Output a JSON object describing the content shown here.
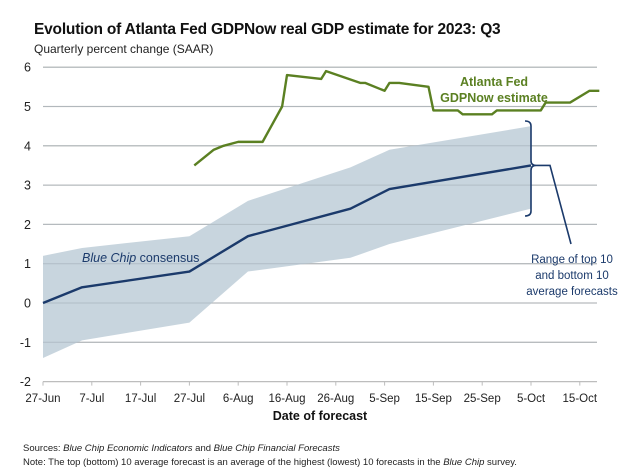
{
  "chart_data": {
    "type": "line",
    "title": "Evolution of Atlanta Fed GDPNow real GDP estimate for 2023: Q3",
    "subtitle": "Quarterly percent change (SAAR)",
    "xlabel": "Date of forecast",
    "ylabel": "",
    "ylim": [
      -2,
      6
    ],
    "yticks": [
      -2,
      -1,
      0,
      1,
      2,
      3,
      4,
      5,
      6
    ],
    "xlim_days_from_jun27": [
      0,
      113
    ],
    "xticks": [
      {
        "label": "27-Jun",
        "day": 0
      },
      {
        "label": "7-Jul",
        "day": 10
      },
      {
        "label": "17-Jul",
        "day": 20
      },
      {
        "label": "27-Jul",
        "day": 30
      },
      {
        "label": "6-Aug",
        "day": 40
      },
      {
        "label": "16-Aug",
        "day": 50
      },
      {
        "label": "26-Aug",
        "day": 60
      },
      {
        "label": "5-Sep",
        "day": 70
      },
      {
        "label": "15-Sep",
        "day": 80
      },
      {
        "label": "25-Sep",
        "day": 90
      },
      {
        "label": "5-Oct",
        "day": 100
      },
      {
        "label": "15-Oct",
        "day": 110
      }
    ],
    "grid": true,
    "series": [
      {
        "name": "Atlanta Fed GDPNow estimate",
        "color": "#5b8022",
        "points": [
          {
            "date": "28-Jul",
            "day": 31,
            "value": 3.5
          },
          {
            "date": "1-Aug",
            "day": 35,
            "value": 3.9
          },
          {
            "date": "3-Aug",
            "day": 37,
            "value": 4.0
          },
          {
            "date": "6-Aug",
            "day": 40,
            "value": 4.1
          },
          {
            "date": "11-Aug",
            "day": 45,
            "value": 4.1
          },
          {
            "date": "15-Aug",
            "day": 49,
            "value": 5.0
          },
          {
            "date": "16-Aug",
            "day": 50,
            "value": 5.8
          },
          {
            "date": "23-Aug",
            "day": 57,
            "value": 5.7
          },
          {
            "date": "24-Aug",
            "day": 58,
            "value": 5.9
          },
          {
            "date": "31-Aug",
            "day": 65,
            "value": 5.6
          },
          {
            "date": "1-Sep",
            "day": 66,
            "value": 5.6
          },
          {
            "date": "5-Sep",
            "day": 70,
            "value": 5.4
          },
          {
            "date": "6-Sep",
            "day": 71,
            "value": 5.6
          },
          {
            "date": "8-Sep",
            "day": 73,
            "value": 5.6
          },
          {
            "date": "14-Sep",
            "day": 79,
            "value": 5.5
          },
          {
            "date": "15-Sep",
            "day": 80,
            "value": 4.9
          },
          {
            "date": "20-Sep",
            "day": 85,
            "value": 4.9
          },
          {
            "date": "21-Sep",
            "day": 86,
            "value": 4.8
          },
          {
            "date": "27-Sep",
            "day": 92,
            "value": 4.8
          },
          {
            "date": "28-Sep",
            "day": 93,
            "value": 4.9
          },
          {
            "date": "7-Oct",
            "day": 102,
            "value": 4.9
          },
          {
            "date": "8-Oct",
            "day": 103,
            "value": 5.1
          },
          {
            "date": "13-Oct",
            "day": 108,
            "value": 5.1
          },
          {
            "date": "17-Oct",
            "day": 112,
            "value": 5.4
          },
          {
            "date": "19-Oct",
            "day": 114,
            "value": 5.4
          }
        ]
      },
      {
        "name": "Blue Chip consensus",
        "color": "#1b3a6b",
        "points": [
          {
            "date": "27-Jun",
            "day": 0,
            "value": 0.0
          },
          {
            "date": "5-Jul",
            "day": 8,
            "value": 0.4
          },
          {
            "date": "27-Jul",
            "day": 30,
            "value": 0.8
          },
          {
            "date": "8-Aug",
            "day": 42,
            "value": 1.7
          },
          {
            "date": "29-Aug",
            "day": 63,
            "value": 2.4
          },
          {
            "date": "6-Sep",
            "day": 71,
            "value": 2.9
          },
          {
            "date": "5-Oct",
            "day": 100,
            "value": 3.5
          }
        ]
      }
    ],
    "band": {
      "name": "Range of top 10 and bottom 10 average forecasts",
      "color": "#c5d3dc",
      "points": [
        {
          "day": 0,
          "top": 1.2,
          "bottom": -1.4
        },
        {
          "day": 8,
          "top": 1.4,
          "bottom": -0.95
        },
        {
          "day": 30,
          "top": 1.7,
          "bottom": -0.5
        },
        {
          "day": 42,
          "top": 2.6,
          "bottom": 0.8
        },
        {
          "day": 63,
          "top": 3.45,
          "bottom": 1.15
        },
        {
          "day": 71,
          "top": 3.9,
          "bottom": 1.5
        },
        {
          "day": 100,
          "top": 4.5,
          "bottom": 2.4
        }
      ]
    },
    "annotations": [
      {
        "text_lines": [
          "Atlanta Fed",
          "GDPNow estimate"
        ],
        "color": "#5b8022"
      },
      {
        "text_parts": [
          {
            "text": "Blue Chip",
            "italic": true
          },
          {
            "text": " consensus",
            "italic": false
          }
        ],
        "color": "#1b3a6b"
      },
      {
        "text_lines": [
          "Range of top 10",
          "and bottom 10",
          "average forecasts"
        ],
        "color": "#1b3a6b"
      }
    ]
  },
  "footer": {
    "sources_label": "Sources:",
    "sources_italic_1": "Blue Chip Economic Indicators",
    "sources_and": " and ",
    "sources_italic_2": "Blue Chip Financial Forecasts",
    "note_label": "Note",
    "note_text": ": The top (bottom) 10 average forecast is an average of the highest (lowest) 10 forecasts in the ",
    "note_italic": "Blue Chip",
    "note_end": " survey."
  }
}
